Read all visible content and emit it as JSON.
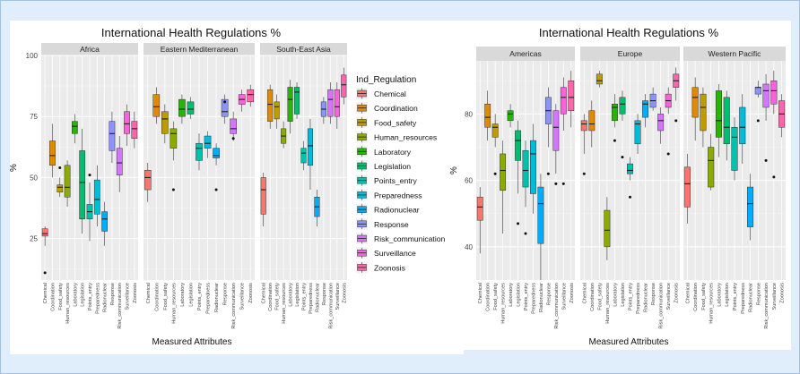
{
  "chart_data": [
    {
      "type": "boxplot",
      "title": "International Health Regulations %",
      "xlabel": "Measured Attributes",
      "ylabel": "%",
      "ylim": [
        8,
        100
      ],
      "yticks": [
        25,
        50,
        75,
        100
      ],
      "grid": true,
      "legend": {
        "title": "Ind_Regulation",
        "placement": "right",
        "entries": [
          {
            "label": "Chemical",
            "color": "#F8766D"
          },
          {
            "label": "Coordination",
            "color": "#E18A00"
          },
          {
            "label": "Food_safety",
            "color": "#BE9C00"
          },
          {
            "label": "Human_resources",
            "color": "#8CAB00"
          },
          {
            "label": "Laboratory",
            "color": "#24B700"
          },
          {
            "label": "Legislation",
            "color": "#00BE70"
          },
          {
            "label": "Points_entry",
            "color": "#00C1AB"
          },
          {
            "label": "Preparedness",
            "color": "#00BBDA"
          },
          {
            "label": "Radionuclear",
            "color": "#00ACFC"
          },
          {
            "label": "Response",
            "color": "#8B93FF"
          },
          {
            "label": "Risk_communication",
            "color": "#D575FE"
          },
          {
            "label": "Surveillance",
            "color": "#F962DD"
          },
          {
            "label": "Zoonosis",
            "color": "#FF65AC"
          }
        ]
      },
      "categories": [
        "Chemical",
        "Coordination",
        "Food_safety",
        "Human_resources",
        "Laboratory",
        "Legislation",
        "Points_entry",
        "Preparedness",
        "Radionuclear",
        "Response",
        "Risk_communication",
        "Surveillance",
        "Zoonosis"
      ],
      "panels": [
        {
          "name": "Africa",
          "boxes": [
            {
              "min": 22,
              "q1": 26,
              "median": 27,
              "q3": 29,
              "max": 30,
              "outliers": [
                11
              ]
            },
            {
              "min": 50,
              "q1": 55,
              "median": 59,
              "q3": 65,
              "max": 72,
              "outliers": []
            },
            {
              "min": 42,
              "q1": 44,
              "median": 46,
              "q3": 47,
              "max": 50,
              "outliers": [
                54
              ]
            },
            {
              "min": 38,
              "q1": 42,
              "median": 46,
              "q3": 55,
              "max": 57,
              "outliers": []
            },
            {
              "min": 64,
              "q1": 68,
              "median": 71,
              "q3": 73,
              "max": 76,
              "outliers": []
            },
            {
              "min": 27,
              "q1": 33,
              "median": 48,
              "q3": 61,
              "max": 70,
              "outliers": []
            },
            {
              "min": 24,
              "q1": 33,
              "median": 36,
              "q3": 39,
              "max": 48,
              "outliers": [
                51
              ]
            },
            {
              "min": 30,
              "q1": 35,
              "median": 41,
              "q3": 49,
              "max": 55,
              "outliers": []
            },
            {
              "min": 22,
              "q1": 28,
              "median": 33,
              "q3": 36,
              "max": 40,
              "outliers": []
            },
            {
              "min": 56,
              "q1": 61,
              "median": 68,
              "q3": 73,
              "max": 77,
              "outliers": []
            },
            {
              "min": 44,
              "q1": 51,
              "median": 56,
              "q3": 62,
              "max": 67,
              "outliers": []
            },
            {
              "min": 63,
              "q1": 68,
              "median": 72,
              "q3": 77,
              "max": 80,
              "outliers": []
            },
            {
              "min": 62,
              "q1": 66,
              "median": 70,
              "q3": 73,
              "max": 77,
              "outliers": []
            }
          ]
        },
        {
          "name": "Eastern Mediterranean",
          "boxes": [
            {
              "min": 40,
              "q1": 45,
              "median": 50,
              "q3": 53,
              "max": 56,
              "outliers": []
            },
            {
              "min": 72,
              "q1": 75,
              "median": 79,
              "q3": 84,
              "max": 87,
              "outliers": []
            },
            {
              "min": 64,
              "q1": 68,
              "median": 74,
              "q3": 77,
              "max": 80,
              "outliers": []
            },
            {
              "min": 57,
              "q1": 62,
              "median": 68,
              "q3": 70,
              "max": 73,
              "outliers": [
                45
              ]
            },
            {
              "min": 72,
              "q1": 75,
              "median": 78,
              "q3": 82,
              "max": 84,
              "outliers": []
            },
            {
              "min": 74,
              "q1": 76,
              "median": 78,
              "q3": 81,
              "max": 83,
              "outliers": []
            },
            {
              "min": 53,
              "q1": 57,
              "median": 62,
              "q3": 64,
              "max": 68,
              "outliers": []
            },
            {
              "min": 58,
              "q1": 62,
              "median": 64,
              "q3": 67,
              "max": 69,
              "outliers": []
            },
            {
              "min": 55,
              "q1": 58,
              "median": 59,
              "q3": 62,
              "max": 64,
              "outliers": [
                45
              ]
            },
            {
              "min": 72,
              "q1": 75,
              "median": 77,
              "q3": 82,
              "max": 84,
              "outliers": [
                81
              ]
            },
            {
              "min": 65,
              "q1": 68,
              "median": 70,
              "q3": 74,
              "max": 77,
              "outliers": [
                66
              ]
            },
            {
              "min": 77,
              "q1": 80,
              "median": 82,
              "q3": 84,
              "max": 86,
              "outliers": []
            },
            {
              "min": 79,
              "q1": 81,
              "median": 84,
              "q3": 86,
              "max": 88,
              "outliers": []
            }
          ]
        },
        {
          "name": "South-East Asia",
          "boxes": [
            {
              "min": 30,
              "q1": 35,
              "median": 45,
              "q3": 50,
              "max": 52,
              "outliers": []
            },
            {
              "min": 70,
              "q1": 73,
              "median": 80,
              "q3": 86,
              "max": 88,
              "outliers": []
            },
            {
              "min": 70,
              "q1": 74,
              "median": 79,
              "q3": 81,
              "max": 84,
              "outliers": []
            },
            {
              "min": 62,
              "q1": 64,
              "median": 67,
              "q3": 70,
              "max": 73,
              "outliers": []
            },
            {
              "min": 68,
              "q1": 73,
              "median": 82,
              "q3": 87,
              "max": 90,
              "outliers": []
            },
            {
              "min": 74,
              "q1": 76,
              "median": 85,
              "q3": 87,
              "max": 89,
              "outliers": []
            },
            {
              "min": 53,
              "q1": 56,
              "median": 60,
              "q3": 62,
              "max": 65,
              "outliers": []
            },
            {
              "min": 45,
              "q1": 55,
              "median": 63,
              "q3": 70,
              "max": 74,
              "outliers": []
            },
            {
              "min": 30,
              "q1": 34,
              "median": 38,
              "q3": 42,
              "max": 45,
              "outliers": []
            },
            {
              "min": 72,
              "q1": 75,
              "median": 78,
              "q3": 81,
              "max": 83,
              "outliers": []
            },
            {
              "min": 72,
              "q1": 75,
              "median": 82,
              "q3": 86,
              "max": 89,
              "outliers": []
            },
            {
              "min": 70,
              "q1": 75,
              "median": 79,
              "q3": 86,
              "max": 89,
              "outliers": []
            },
            {
              "min": 80,
              "q1": 83,
              "median": 88,
              "q3": 92,
              "max": 95,
              "outliers": []
            }
          ]
        }
      ]
    },
    {
      "type": "boxplot",
      "title": "International Health Regulations %",
      "xlabel": "Measured Attributes",
      "ylabel": "%",
      "ylim": [
        30,
        96
      ],
      "yticks": [
        40,
        60,
        80
      ],
      "grid": true,
      "categories": [
        "Chemical",
        "Coordination",
        "Food_safety",
        "Human_resources",
        "Laboratory",
        "Legislation",
        "Points_entry",
        "Preparedness",
        "Radionuclear",
        "Response",
        "Risk_communication",
        "Surveillance",
        "Zoonosis"
      ],
      "panels": [
        {
          "name": "Americas",
          "boxes": [
            {
              "min": 38,
              "q1": 48,
              "median": 52,
              "q3": 55,
              "max": 58,
              "outliers": []
            },
            {
              "min": 72,
              "q1": 76,
              "median": 79,
              "q3": 83,
              "max": 87,
              "outliers": []
            },
            {
              "min": 70,
              "q1": 73,
              "median": 76,
              "q3": 77,
              "max": 80,
              "outliers": [
                62
              ]
            },
            {
              "min": 44,
              "q1": 57,
              "median": 63,
              "q3": 68,
              "max": 72,
              "outliers": []
            },
            {
              "min": 76,
              "q1": 78,
              "median": 80,
              "q3": 81,
              "max": 83,
              "outliers": []
            },
            {
              "min": 56,
              "q1": 66,
              "median": 72,
              "q3": 75,
              "max": 78,
              "outliers": [
                47
              ]
            },
            {
              "min": 52,
              "q1": 58,
              "median": 63,
              "q3": 69,
              "max": 72,
              "outliers": [
                44
              ]
            },
            {
              "min": 50,
              "q1": 56,
              "median": 68,
              "q3": 72,
              "max": 77,
              "outliers": []
            },
            {
              "min": 30,
              "q1": 41,
              "median": 53,
              "q3": 58,
              "max": 62,
              "outliers": []
            },
            {
              "min": 70,
              "q1": 77,
              "median": 81,
              "q3": 85,
              "max": 88,
              "outliers": [
                62
              ]
            },
            {
              "min": 62,
              "q1": 69,
              "median": 76,
              "q3": 81,
              "max": 83,
              "outliers": [
                59
              ]
            },
            {
              "min": 75,
              "q1": 80,
              "median": 85,
              "q3": 88,
              "max": 91,
              "outliers": [
                59
              ]
            },
            {
              "min": 76,
              "q1": 81,
              "median": 85,
              "q3": 90,
              "max": 93,
              "outliers": []
            }
          ]
        },
        {
          "name": "Europe",
          "boxes": [
            {
              "min": 68,
              "q1": 75,
              "median": 77,
              "q3": 78,
              "max": 80,
              "outliers": [
                62
              ]
            },
            {
              "min": 70,
              "q1": 75,
              "median": 77,
              "q3": 81,
              "max": 84,
              "outliers": []
            },
            {
              "min": 88,
              "q1": 89,
              "median": 90,
              "q3": 92,
              "max": 93,
              "outliers": []
            },
            {
              "min": 36,
              "q1": 40,
              "median": 45,
              "q3": 51,
              "max": 55,
              "outliers": []
            },
            {
              "min": 76,
              "q1": 78,
              "median": 82,
              "q3": 83,
              "max": 86,
              "outliers": [
                72
              ]
            },
            {
              "min": 78,
              "q1": 80,
              "median": 83,
              "q3": 85,
              "max": 87,
              "outliers": [
                67
              ]
            },
            {
              "min": 60,
              "q1": 62,
              "median": 63,
              "q3": 65,
              "max": 67,
              "outliers": [
                55
              ]
            },
            {
              "min": 68,
              "q1": 71,
              "median": 77,
              "q3": 78,
              "max": 80,
              "outliers": []
            },
            {
              "min": 76,
              "q1": 79,
              "median": 83,
              "q3": 84,
              "max": 86,
              "outliers": []
            },
            {
              "min": 81,
              "q1": 82,
              "median": 84,
              "q3": 86,
              "max": 88,
              "outliers": []
            },
            {
              "min": 71,
              "q1": 75,
              "median": 78,
              "q3": 80,
              "max": 82,
              "outliers": []
            },
            {
              "min": 80,
              "q1": 82,
              "median": 84,
              "q3": 86,
              "max": 88,
              "outliers": [
                68
              ]
            },
            {
              "min": 84,
              "q1": 88,
              "median": 90,
              "q3": 92,
              "max": 94,
              "outliers": [
                78
              ]
            }
          ]
        },
        {
          "name": "Western Pacific",
          "boxes": [
            {
              "min": 47,
              "q1": 52,
              "median": 59,
              "q3": 64,
              "max": 68,
              "outliers": []
            },
            {
              "min": 72,
              "q1": 79,
              "median": 85,
              "q3": 88,
              "max": 91,
              "outliers": []
            },
            {
              "min": 70,
              "q1": 75,
              "median": 82,
              "q3": 86,
              "max": 88,
              "outliers": []
            },
            {
              "min": 57,
              "q1": 58,
              "median": 66,
              "q3": 70,
              "max": 74,
              "outliers": []
            },
            {
              "min": 67,
              "q1": 73,
              "median": 78,
              "q3": 87,
              "max": 89,
              "outliers": []
            },
            {
              "min": 66,
              "q1": 71,
              "median": 76,
              "q3": 85,
              "max": 87,
              "outliers": []
            },
            {
              "min": 60,
              "q1": 63,
              "median": 73,
              "q3": 76,
              "max": 79,
              "outliers": []
            },
            {
              "min": 65,
              "q1": 71,
              "median": 76,
              "q3": 82,
              "max": 86,
              "outliers": []
            },
            {
              "min": 42,
              "q1": 46,
              "median": 53,
              "q3": 58,
              "max": 62,
              "outliers": []
            },
            {
              "min": 85,
              "q1": 86,
              "median": 88,
              "q3": 88,
              "max": 90,
              "outliers": [
                78
              ]
            },
            {
              "min": 78,
              "q1": 82,
              "median": 87,
              "q3": 89,
              "max": 92,
              "outliers": [
                66
              ]
            },
            {
              "min": 80,
              "q1": 83,
              "median": 87,
              "q3": 90,
              "max": 93,
              "outliers": [
                61
              ]
            },
            {
              "min": 73,
              "q1": 76,
              "median": 80,
              "q3": 84,
              "max": 86,
              "outliers": []
            }
          ]
        }
      ]
    }
  ]
}
